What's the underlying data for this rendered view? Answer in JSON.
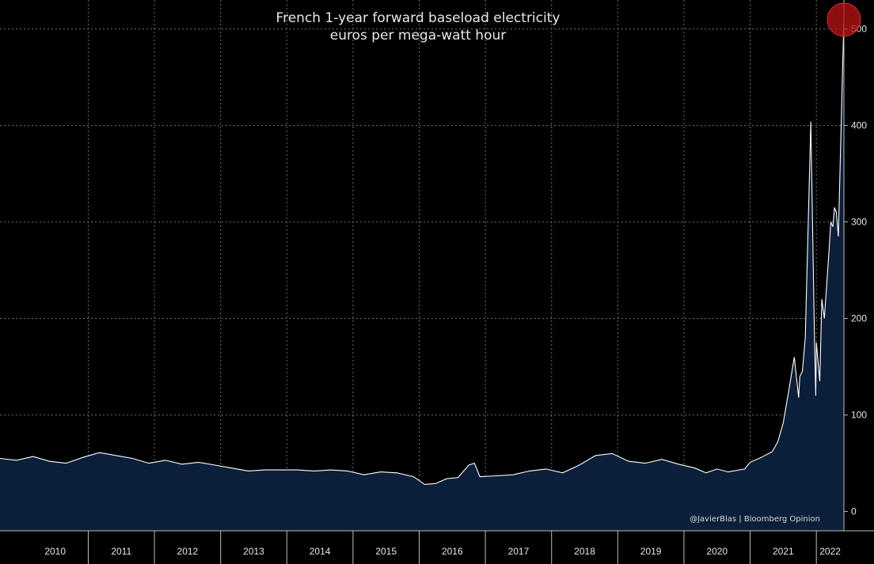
{
  "chart_data": {
    "type": "area",
    "title": "French 1-year forward baseload electricity",
    "subtitle": "euros per mega-watt hour",
    "xlabel": "",
    "ylabel": "",
    "ylim": [
      -20,
      530
    ],
    "yticks": [
      0,
      100,
      200,
      300,
      400,
      500
    ],
    "x_range": [
      "2009-09",
      "2022-06"
    ],
    "x_tick_labels": [
      "2010",
      "2011",
      "2012",
      "2013",
      "2014",
      "2015",
      "2016",
      "2017",
      "2018",
      "2019",
      "2020",
      "2021",
      "2022"
    ],
    "grid": true,
    "series": [
      {
        "x": [
          "2009-09",
          "2009-12",
          "2010-03",
          "2010-06",
          "2010-09",
          "2010-12",
          "2011-03",
          "2011-06",
          "2011-09",
          "2011-12",
          "2012-03",
          "2012-06",
          "2012-09",
          "2012-12",
          "2013-03",
          "2013-06",
          "2013-09",
          "2013-12",
          "2014-03",
          "2014-06",
          "2014-09",
          "2014-12",
          "2015-03",
          "2015-06",
          "2015-09",
          "2015-12",
          "2016-02",
          "2016-04",
          "2016-06",
          "2016-08",
          "2016-10",
          "2016-11",
          "2016-12",
          "2017-03",
          "2017-06",
          "2017-09",
          "2017-12",
          "2018-03",
          "2018-06",
          "2018-09",
          "2018-12",
          "2019-03",
          "2019-06",
          "2019-09",
          "2019-12",
          "2020-03",
          "2020-05",
          "2020-07",
          "2020-09",
          "2020-12",
          "2021-01",
          "2021-03",
          "2021-05",
          "2021-06",
          "2021-07",
          "2021-08",
          "2021-09",
          "2021-09-25",
          "2021-10",
          "2021-10-15",
          "2021-11",
          "2021-12-01",
          "2021-12-21",
          "2021-12-28",
          "2022-01",
          "2022-01-20",
          "2022-02",
          "2022-02-15",
          "2022-03",
          "2022-03-10",
          "2022-03-20",
          "2022-04",
          "2022-04-10",
          "2022-04-20",
          "2022-05",
          "2022-05-15",
          "2022-05-25",
          "2022-06"
        ],
        "y": [
          55,
          53,
          57,
          52,
          50,
          56,
          61,
          58,
          55,
          50,
          53,
          49,
          51,
          48,
          45,
          42,
          43,
          43,
          43,
          42,
          43,
          42,
          38,
          41,
          40,
          36,
          28,
          29,
          34,
          35,
          48,
          50,
          36,
          37,
          38,
          42,
          44,
          40,
          48,
          58,
          60,
          52,
          50,
          54,
          49,
          45,
          40,
          44,
          41,
          44,
          51,
          56,
          62,
          72,
          92,
          125,
          160,
          118,
          140,
          145,
          180,
          404,
          180,
          120,
          175,
          135,
          220,
          200,
          245,
          270,
          300,
          295,
          315,
          310,
          285,
          390,
          465,
          508
        ]
      }
    ],
    "annotations": [
      "@JavierBlas | Bloomberg Opinion"
    ],
    "colors": {
      "background": "#000000",
      "area_fill": "#0b1f3a",
      "line": "#ffffff",
      "grid": "#6f6f6f",
      "highlight": "#b51414"
    },
    "highlight_point": {
      "x": "2022-06",
      "y": 508
    }
  }
}
